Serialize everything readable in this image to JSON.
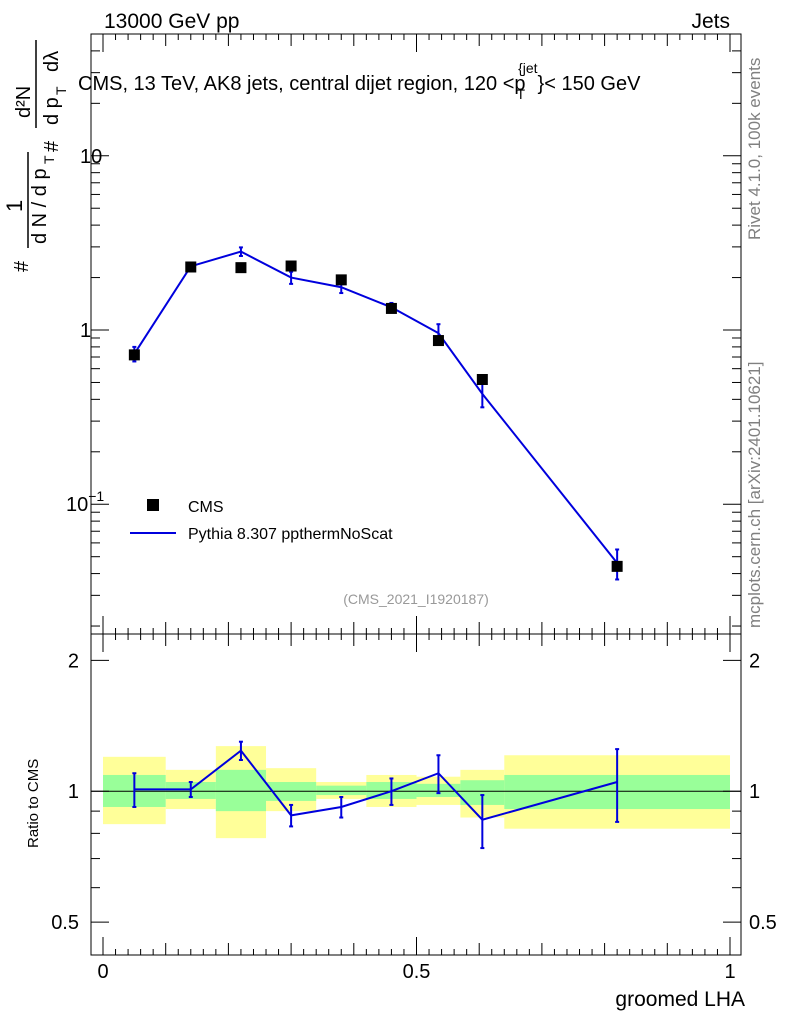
{
  "header": {
    "energy_label": "13000 GeV pp",
    "category_label": "Jets"
  },
  "side_text": {
    "rivet": "Rivet 4.1.0,  100k events",
    "mcplots": "mcplots.cern.ch [arXiv:2401.10621]"
  },
  "chart_data": [
    {
      "type": "scatter",
      "panel": "main",
      "title": "CMS, 13 TeV, AK8 jets, central dijet region, 120 <p_T^{jet}< 150 GeV",
      "title_parts": {
        "prefix": "CMS, 13 TeV, AK8 jets, central dijet region, 120 <",
        "p": "p",
        "sub": "T",
        "sup": "{jet",
        "suffix": "}< 150 GeV"
      },
      "ylabel_parts": {
        "hash1": "#",
        "one": "1",
        "dN_dpT": "d N / d p",
        "T1": "T",
        "hash2": "#",
        "d2N": "d²N",
        "dpT_dl": "d p",
        "T2": "T",
        "dlambda": "dλ"
      },
      "yscale": "log",
      "ylim": [
        0.018,
        50
      ],
      "xlim": [
        0,
        1
      ],
      "ytick_labels": [
        {
          "value": 0.1,
          "base": "10",
          "exp": "−1"
        },
        {
          "value": 1,
          "base": "1",
          "exp": ""
        },
        {
          "value": 10,
          "base": "10",
          "exp": ""
        }
      ],
      "annotation": "(CMS_2021_I1920187)",
      "legend": [
        {
          "name": "CMS",
          "marker": "square",
          "color": "#000000"
        },
        {
          "name": "Pythia 8.307 ppthermNoScat",
          "marker": "line",
          "color": "#0000dd"
        }
      ],
      "series": [
        {
          "name": "CMS",
          "color": "#000000",
          "x": [
            0.05,
            0.14,
            0.22,
            0.3,
            0.38,
            0.46,
            0.535,
            0.605,
            0.82
          ],
          "y": [
            0.72,
            2.3,
            2.28,
            2.33,
            1.94,
            1.33,
            0.87,
            0.52,
            0.044
          ]
        },
        {
          "name": "Pythia 8.307 ppthermNoScat",
          "color": "#0000dd",
          "x": [
            0.05,
            0.14,
            0.22,
            0.3,
            0.38,
            0.46,
            0.535,
            0.605,
            0.82
          ],
          "y": [
            0.73,
            2.32,
            2.82,
            2.0,
            1.76,
            1.35,
            0.96,
            0.43,
            0.046
          ],
          "err": [
            0.07,
            0.12,
            0.16,
            0.16,
            0.13,
            0.08,
            0.12,
            0.07,
            0.009
          ]
        }
      ]
    },
    {
      "type": "line",
      "panel": "ratio",
      "ylabel": "Ratio to CMS",
      "xlabel": "groomed LHA",
      "yscale": "log",
      "ylim": [
        0.42,
        2.3
      ],
      "xlim": [
        0,
        1
      ],
      "yticks": [
        0.5,
        1,
        2
      ],
      "ytick_labels": [
        "0.5",
        "1",
        "2"
      ],
      "xticks": [
        0,
        0.5,
        1
      ],
      "xtick_labels": [
        "0",
        "0.5",
        "1"
      ],
      "bands": [
        {
          "x": [
            0,
            0.1
          ],
          "inner": [
            0.92,
            1.09
          ],
          "outer": [
            0.84,
            1.2
          ]
        },
        {
          "x": [
            0.1,
            0.18
          ],
          "inner": [
            0.96,
            1.05
          ],
          "outer": [
            0.91,
            1.12
          ]
        },
        {
          "x": [
            0.18,
            0.26
          ],
          "inner": [
            0.9,
            1.12
          ],
          "outer": [
            0.78,
            1.27
          ]
        },
        {
          "x": [
            0.26,
            0.34
          ],
          "inner": [
            0.95,
            1.05
          ],
          "outer": [
            0.9,
            1.13
          ]
        },
        {
          "x": [
            0.34,
            0.42
          ],
          "inner": [
            0.98,
            1.03
          ],
          "outer": [
            0.96,
            1.05
          ]
        },
        {
          "x": [
            0.42,
            0.5
          ],
          "inner": [
            0.96,
            1.05
          ],
          "outer": [
            0.92,
            1.09
          ]
        },
        {
          "x": [
            0.5,
            0.57
          ],
          "inner": [
            0.97,
            1.04
          ],
          "outer": [
            0.93,
            1.08
          ]
        },
        {
          "x": [
            0.57,
            0.64
          ],
          "inner": [
            0.93,
            1.06
          ],
          "outer": [
            0.87,
            1.12
          ]
        },
        {
          "x": [
            0.64,
            1.0
          ],
          "inner": [
            0.91,
            1.09
          ],
          "outer": [
            0.82,
            1.21
          ]
        }
      ],
      "series": [
        {
          "name": "Pythia 8.307 ppthermNoScat / CMS",
          "color": "#0000dd",
          "x": [
            0.05,
            0.14,
            0.22,
            0.3,
            0.38,
            0.46,
            0.535,
            0.605,
            0.82
          ],
          "y": [
            1.01,
            1.01,
            1.24,
            0.88,
            0.92,
            1.0,
            1.1,
            0.86,
            1.05
          ],
          "err": [
            0.09,
            0.04,
            0.06,
            0.05,
            0.05,
            0.07,
            0.11,
            0.12,
            0.2
          ]
        }
      ]
    }
  ],
  "colors": {
    "outer_band": "#ffff99",
    "inner_band": "#99ff99",
    "mc_line": "#0000dd",
    "data": "#000000",
    "annotation": "#999999",
    "side_text": "#808080"
  }
}
